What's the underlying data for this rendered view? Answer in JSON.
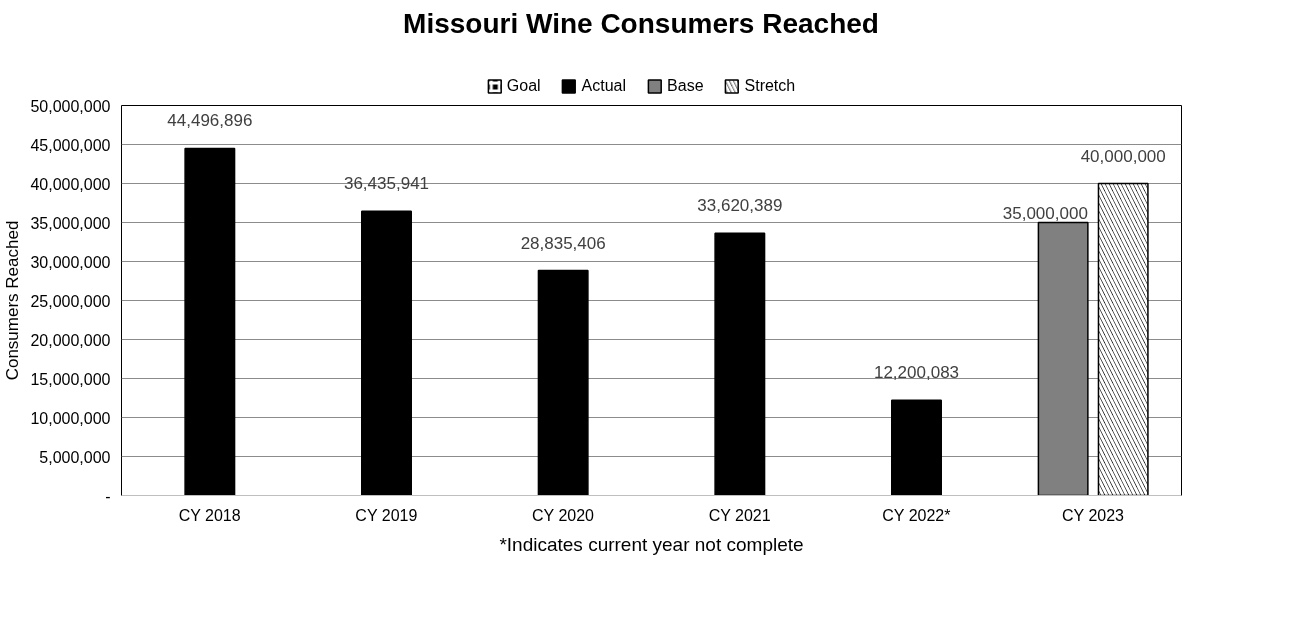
{
  "chart_data": {
    "type": "bar",
    "title": "Missouri Wine Consumers Reached",
    "ylabel": "Consumers Reached",
    "categories": [
      "CY 2018",
      "CY 2019",
      "CY 2020",
      "CY 2021",
      "CY 2022*",
      "CY 2023"
    ],
    "series": [
      {
        "name": "Goal",
        "color": "#000000",
        "values": [
          null,
          null,
          null,
          null,
          null,
          null
        ]
      },
      {
        "name": "Actual",
        "color": "#000000",
        "values": [
          44496896,
          36435941,
          28835406,
          33620389,
          12200083,
          null
        ],
        "value_labels": [
          "44,496,896",
          "36,435,941",
          "28,835,406",
          "33,620,389",
          "12,200,083",
          null
        ]
      },
      {
        "name": "Base",
        "color": "#808080",
        "values": [
          null,
          null,
          null,
          null,
          null,
          35000000
        ],
        "value_labels": [
          null,
          null,
          null,
          null,
          null,
          "35,000,000"
        ]
      },
      {
        "name": "Stretch",
        "color": "#000000",
        "values": [
          null,
          null,
          null,
          null,
          null,
          40000000
        ],
        "value_labels": [
          null,
          null,
          null,
          null,
          null,
          "40,000,000"
        ]
      }
    ],
    "ylim": [
      0,
      50000000
    ],
    "yticks": [
      {
        "value": 0,
        "label": "-"
      },
      {
        "value": 5000000,
        "label": "5,000,000"
      },
      {
        "value": 10000000,
        "label": "10,000,000"
      },
      {
        "value": 15000000,
        "label": "15,000,000"
      },
      {
        "value": 20000000,
        "label": "20,000,000"
      },
      {
        "value": 25000000,
        "label": "25,000,000"
      },
      {
        "value": 30000000,
        "label": "30,000,000"
      },
      {
        "value": 35000000,
        "label": "35,000,000"
      },
      {
        "value": 40000000,
        "label": "40,000,000"
      },
      {
        "value": 45000000,
        "label": "45,000,000"
      },
      {
        "value": 50000000,
        "label": "50,000,000"
      }
    ],
    "grid": "y",
    "legend": "top",
    "data_labels": true,
    "annotations": [
      "*Indicates current year not complete"
    ]
  }
}
